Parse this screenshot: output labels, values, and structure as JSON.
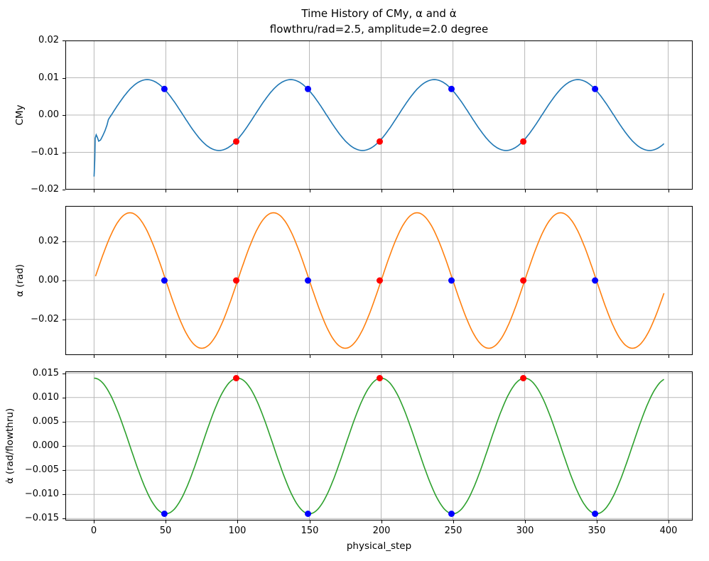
{
  "title": {
    "line1": "Time History of CMy, α and α̇",
    "line2": "flowthru/rad=2.5, amplitude=2.0 degree"
  },
  "x_axis": {
    "label": "physical_step",
    "xlim": [
      -20,
      417
    ],
    "ticks": [
      0,
      50,
      100,
      150,
      200,
      250,
      300,
      350,
      400
    ],
    "tick_labels": [
      "0",
      "50",
      "100",
      "150",
      "200",
      "250",
      "300",
      "350",
      "400"
    ]
  },
  "colors": {
    "grid": "#b8b8b8",
    "spine": "#000000",
    "marker_blue": "#0000ff",
    "marker_red": "#ff0000",
    "cmy_line": "#1f77b4",
    "alpha_line": "#ff7f0e",
    "alphadot_line": "#2ca02c"
  },
  "chart_data": [
    {
      "id": "cmy",
      "type": "line",
      "ylabel": "CMy",
      "line_color": "#1f77b4",
      "ylim": [
        -0.02,
        0.02
      ],
      "yticks": [
        {
          "v": -0.02,
          "label": "−0.02"
        },
        {
          "v": -0.01,
          "label": "−0.01"
        },
        {
          "v": 0.0,
          "label": "0.00"
        },
        {
          "v": 0.01,
          "label": "0.01"
        },
        {
          "v": 0.02,
          "label": "0.02"
        }
      ],
      "series": {
        "shape": "sine",
        "amplitude": 0.0095,
        "period": 100,
        "phase_shift": 12,
        "x_start": 10,
        "x_end": 397
      },
      "prefix_points": [
        [
          0,
          -0.0165
        ],
        [
          0.5,
          -0.012
        ],
        [
          0.8,
          -0.0062
        ],
        [
          1.5,
          -0.0053
        ],
        [
          2.3,
          -0.006
        ],
        [
          3.2,
          -0.007
        ],
        [
          4.5,
          -0.0067
        ],
        [
          6,
          -0.0056
        ],
        [
          7.5,
          -0.0043
        ],
        [
          9,
          -0.0027
        ]
      ],
      "markers": [
        {
          "name": "blue",
          "color": "#0000ff",
          "points": [
            [
              49,
              0.007
            ],
            [
              149,
              0.007
            ],
            [
              249,
              0.007
            ],
            [
              349,
              0.007
            ]
          ]
        },
        {
          "name": "red",
          "color": "#ff0000",
          "points": [
            [
              99,
              -0.0071
            ],
            [
              199,
              -0.0071
            ],
            [
              299,
              -0.0071
            ]
          ]
        }
      ]
    },
    {
      "id": "alpha",
      "type": "line",
      "ylabel": "α (rad)",
      "line_color": "#ff7f0e",
      "ylim": [
        -0.0384,
        0.0384
      ],
      "yticks": [
        {
          "v": -0.02,
          "label": "−0.02"
        },
        {
          "v": 0.0,
          "label": "0.00"
        },
        {
          "v": 0.02,
          "label": "0.02"
        }
      ],
      "series": {
        "shape": "sine",
        "amplitude": 0.0349,
        "period": 100,
        "phase_shift": 0,
        "x_start": 1,
        "x_end": 397
      },
      "markers": [
        {
          "name": "blue",
          "color": "#0000ff",
          "points": [
            [
              49,
              0.0
            ],
            [
              149,
              0.0
            ],
            [
              249,
              0.0
            ],
            [
              349,
              0.0
            ]
          ]
        },
        {
          "name": "red",
          "color": "#ff0000",
          "points": [
            [
              99,
              0.0
            ],
            [
              199,
              0.0
            ],
            [
              299,
              0.0
            ]
          ]
        }
      ]
    },
    {
      "id": "alpha-dot",
      "type": "line",
      "ylabel": "α̇ (rad/flowthru)",
      "line_color": "#2ca02c",
      "ylim": [
        -0.0154,
        0.0154
      ],
      "yticks": [
        {
          "v": -0.015,
          "label": "−0.015"
        },
        {
          "v": -0.01,
          "label": "−0.010"
        },
        {
          "v": -0.005,
          "label": "−0.005"
        },
        {
          "v": 0.0,
          "label": "0.000"
        },
        {
          "v": 0.005,
          "label": "0.005"
        },
        {
          "v": 0.01,
          "label": "0.010"
        },
        {
          "v": 0.015,
          "label": "0.015"
        }
      ],
      "series": {
        "shape": "sine",
        "amplitude": 0.014,
        "period": 100,
        "phase_shift": -25,
        "x_start": 0,
        "x_end": 397
      },
      "markers": [
        {
          "name": "blue",
          "color": "#0000ff",
          "points": [
            [
              49,
              -0.014
            ],
            [
              149,
              -0.014
            ],
            [
              249,
              -0.014
            ],
            [
              349,
              -0.014
            ]
          ]
        },
        {
          "name": "red",
          "color": "#ff0000",
          "points": [
            [
              99,
              0.014
            ],
            [
              199,
              0.014
            ],
            [
              299,
              0.014
            ]
          ]
        }
      ]
    }
  ]
}
